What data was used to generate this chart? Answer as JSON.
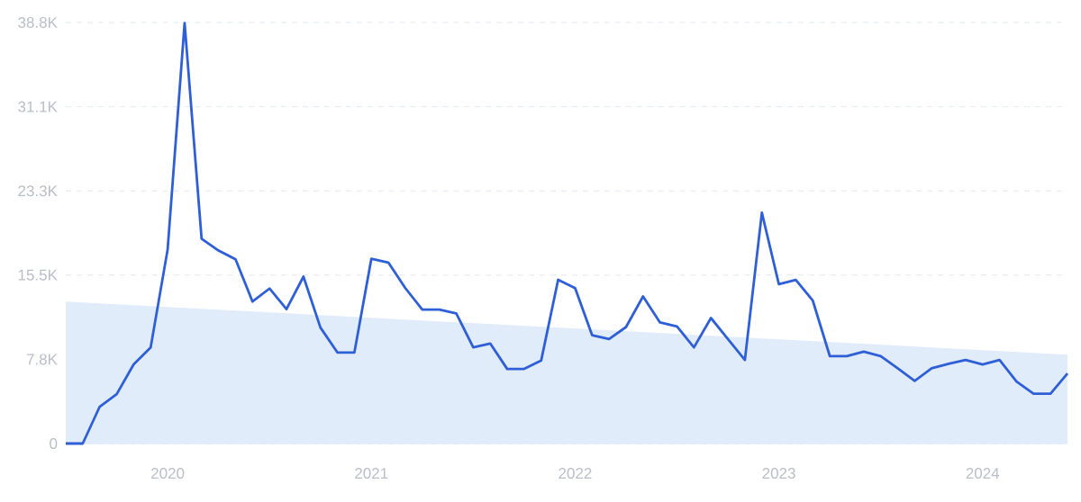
{
  "chart_data": {
    "type": "line",
    "x": [
      "2019-07",
      "2019-08",
      "2019-09",
      "2019-10",
      "2019-11",
      "2019-12",
      "2020-01",
      "2020-02",
      "2020-03",
      "2020-04",
      "2020-05",
      "2020-06",
      "2020-07",
      "2020-08",
      "2020-09",
      "2020-10",
      "2020-11",
      "2020-12",
      "2021-01",
      "2021-02",
      "2021-03",
      "2021-04",
      "2021-05",
      "2021-06",
      "2021-07",
      "2021-08",
      "2021-09",
      "2021-10",
      "2021-11",
      "2021-12",
      "2022-01",
      "2022-02",
      "2022-03",
      "2022-04",
      "2022-05",
      "2022-06",
      "2022-07",
      "2022-08",
      "2022-09",
      "2022-10",
      "2022-11",
      "2022-12",
      "2023-01",
      "2023-02",
      "2023-03",
      "2023-04",
      "2023-05",
      "2023-06",
      "2023-07",
      "2023-08",
      "2023-09",
      "2023-10",
      "2023-11",
      "2023-12",
      "2024-01",
      "2024-02",
      "2024-03",
      "2024-04",
      "2024-05",
      "2024-06"
    ],
    "series": [
      {
        "type": "area",
        "color": "#e1ecfb",
        "x": [
          "2019-07",
          "2024-06"
        ],
        "values": [
          13100,
          8200
        ]
      },
      {
        "color": "#2f5fd6",
        "values": [
          0,
          0,
          3400,
          4560,
          7300,
          8870,
          17900,
          38800,
          18900,
          17800,
          17000,
          13100,
          14300,
          12400,
          15400,
          10700,
          8400,
          8400,
          17050,
          16700,
          14340,
          12350,
          12350,
          12000,
          8870,
          9230,
          6880,
          6880,
          7650,
          15110,
          14340,
          10000,
          9640,
          10750,
          13570,
          11170,
          10800,
          8870,
          11580,
          9640,
          7710,
          21300,
          14700,
          15090,
          13180,
          8070,
          8070,
          8480,
          8070,
          6940,
          5780,
          6940,
          7350,
          7710,
          7300,
          7710,
          5720,
          4590,
          4590,
          6470
        ]
      }
    ],
    "xlim": [
      "2019-07",
      "2024-06"
    ],
    "xticks": [
      {
        "value": "2020-01",
        "label": "2020"
      },
      {
        "value": "2021-01",
        "label": "2021"
      },
      {
        "value": "2022-01",
        "label": "2022"
      },
      {
        "value": "2023-01",
        "label": "2023"
      },
      {
        "value": "2024-01",
        "label": "2024"
      }
    ],
    "ylim": [
      0,
      38850
    ],
    "yticks": [
      0,
      {
        "value": 7770,
        "label": "7.8K"
      },
      {
        "value": 15540,
        "label": "15.5K"
      },
      {
        "value": 23310,
        "label": "23.3K"
      },
      {
        "value": 31080,
        "label": "31.1K"
      },
      {
        "value": 38850,
        "label": "38.8K"
      }
    ],
    "grid": "y"
  }
}
